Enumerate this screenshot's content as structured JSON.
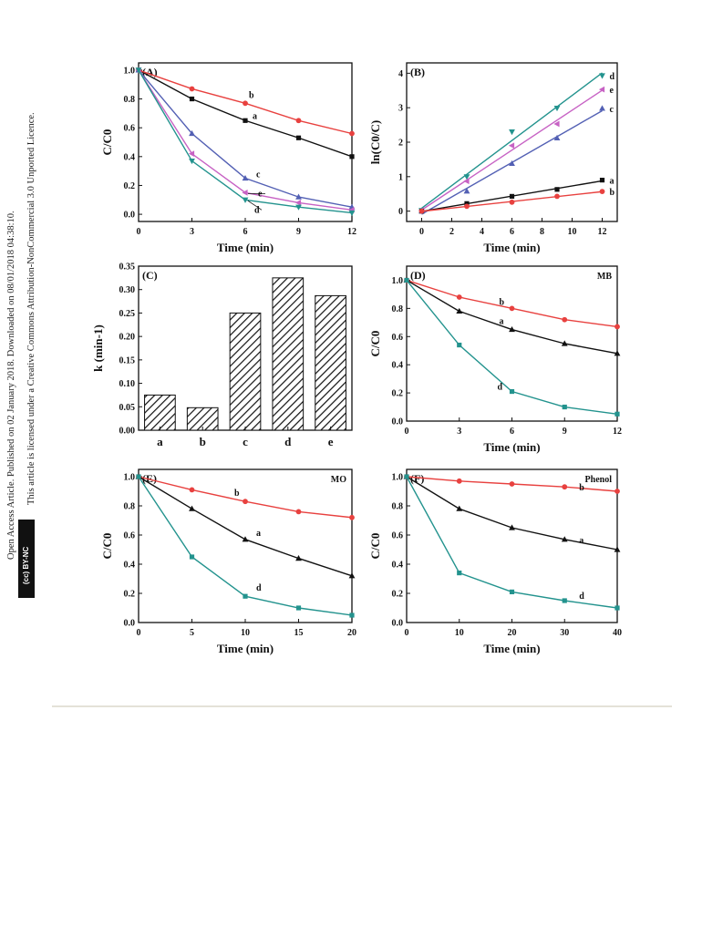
{
  "sidebar": {
    "line1": "Open Access Article. Published on 02 January 2018. Downloaded on 08/01/2018 04:38:10.",
    "line2": "This article is licensed under a Creative Commons Attribution-NonCommercial 3.0 Unported Licence.",
    "badge": "(cc) BY-NC"
  },
  "colors": {
    "a": "#111111",
    "b": "#e8413f",
    "c": "#5360b4",
    "d": "#23938e",
    "e": "#c762c4"
  },
  "chart_data": [
    {
      "panel": "(A)",
      "type": "line",
      "xlabel": "Time (min)",
      "ylabel": "C/C0",
      "xlim": [
        0,
        12
      ],
      "ylim": [
        -0.05,
        1.05
      ],
      "xticks": [
        0,
        3,
        6,
        9,
        12
      ],
      "yticks": [
        0.0,
        0.2,
        0.4,
        0.6,
        0.8,
        1.0
      ],
      "x": [
        0,
        3,
        6,
        9,
        12
      ],
      "series": [
        {
          "name": "a",
          "values": [
            1.0,
            0.8,
            0.65,
            0.53,
            0.4
          ]
        },
        {
          "name": "b",
          "values": [
            1.0,
            0.87,
            0.77,
            0.65,
            0.56
          ]
        },
        {
          "name": "c",
          "values": [
            1.0,
            0.56,
            0.25,
            0.12,
            0.05
          ]
        },
        {
          "name": "e",
          "values": [
            1.0,
            0.42,
            0.15,
            0.08,
            0.03
          ]
        },
        {
          "name": "d",
          "values": [
            1.0,
            0.37,
            0.1,
            0.05,
            0.01
          ]
        }
      ]
    },
    {
      "panel": "(B)",
      "type": "line",
      "xlabel": "Time (min)",
      "ylabel": "ln(C0/C)",
      "xlim": [
        -1,
        13
      ],
      "ylim": [
        -0.3,
        4.3
      ],
      "xticks": [
        0,
        2,
        4,
        6,
        8,
        10,
        12
      ],
      "yticks": [
        0,
        1,
        2,
        3,
        4
      ],
      "x": [
        0,
        3,
        6,
        9,
        12
      ],
      "series": [
        {
          "name": "d",
          "values": [
            0.02,
            1.0,
            2.3,
            2.99,
            3.93
          ]
        },
        {
          "name": "e",
          "values": [
            0.02,
            0.87,
            1.9,
            2.53,
            3.53
          ]
        },
        {
          "name": "c",
          "values": [
            0.0,
            0.58,
            1.38,
            2.12,
            2.98
          ]
        },
        {
          "name": "a",
          "values": [
            0.0,
            0.22,
            0.43,
            0.63,
            0.9
          ]
        },
        {
          "name": "b",
          "values": [
            0.0,
            0.14,
            0.26,
            0.43,
            0.57
          ]
        }
      ]
    },
    {
      "panel": "(C)",
      "type": "bar",
      "xlabel": "",
      "ylabel": "k (min-1)",
      "ylim": [
        0,
        0.35
      ],
      "yticks": [
        0.0,
        0.05,
        0.1,
        0.15,
        0.2,
        0.25,
        0.3,
        0.35
      ],
      "categories": [
        "a",
        "b",
        "c",
        "d",
        "e"
      ],
      "values": [
        0.075,
        0.048,
        0.25,
        0.325,
        0.287
      ]
    },
    {
      "panel": "(D)",
      "label": "MB",
      "type": "line",
      "xlabel": "Time (min)",
      "ylabel": "C/C0",
      "xlim": [
        0,
        12
      ],
      "ylim": [
        0.0,
        1.1
      ],
      "xticks": [
        0,
        3,
        6,
        9,
        12
      ],
      "yticks": [
        0.0,
        0.2,
        0.4,
        0.6,
        0.8,
        1.0
      ],
      "x": [
        0,
        3,
        6,
        9,
        12
      ],
      "series": [
        {
          "name": "b",
          "values": [
            1.0,
            0.88,
            0.8,
            0.72,
            0.67
          ]
        },
        {
          "name": "a",
          "values": [
            1.0,
            0.78,
            0.65,
            0.55,
            0.48
          ]
        },
        {
          "name": "d",
          "values": [
            1.0,
            0.54,
            0.21,
            0.1,
            0.05
          ]
        }
      ]
    },
    {
      "panel": "(E)",
      "label": "MO",
      "type": "line",
      "xlabel": "Time (min)",
      "ylabel": "C/C0",
      "xlim": [
        0,
        20
      ],
      "ylim": [
        0.0,
        1.05
      ],
      "xticks": [
        0,
        5,
        10,
        15,
        20
      ],
      "yticks": [
        0.0,
        0.2,
        0.4,
        0.6,
        0.8,
        1.0
      ],
      "x": [
        0,
        5,
        10,
        15,
        20
      ],
      "series": [
        {
          "name": "b",
          "values": [
            1.0,
            0.91,
            0.83,
            0.76,
            0.72
          ]
        },
        {
          "name": "a",
          "values": [
            1.0,
            0.78,
            0.57,
            0.44,
            0.32
          ]
        },
        {
          "name": "d",
          "values": [
            1.0,
            0.45,
            0.18,
            0.1,
            0.05
          ]
        }
      ]
    },
    {
      "panel": "(F)",
      "label": "Phenol",
      "type": "line",
      "xlabel": "Time (min)",
      "ylabel": "C/C0",
      "xlim": [
        0,
        40
      ],
      "ylim": [
        0.0,
        1.05
      ],
      "xticks": [
        0,
        10,
        20,
        30,
        40
      ],
      "yticks": [
        0.0,
        0.2,
        0.4,
        0.6,
        0.8,
        1.0
      ],
      "x": [
        0,
        10,
        20,
        30,
        40
      ],
      "series": [
        {
          "name": "b",
          "values": [
            1.0,
            0.97,
            0.95,
            0.93,
            0.9
          ]
        },
        {
          "name": "a",
          "values": [
            1.0,
            0.78,
            0.65,
            0.57,
            0.5
          ]
        },
        {
          "name": "d",
          "values": [
            1.0,
            0.34,
            0.21,
            0.15,
            0.1
          ]
        }
      ]
    }
  ]
}
